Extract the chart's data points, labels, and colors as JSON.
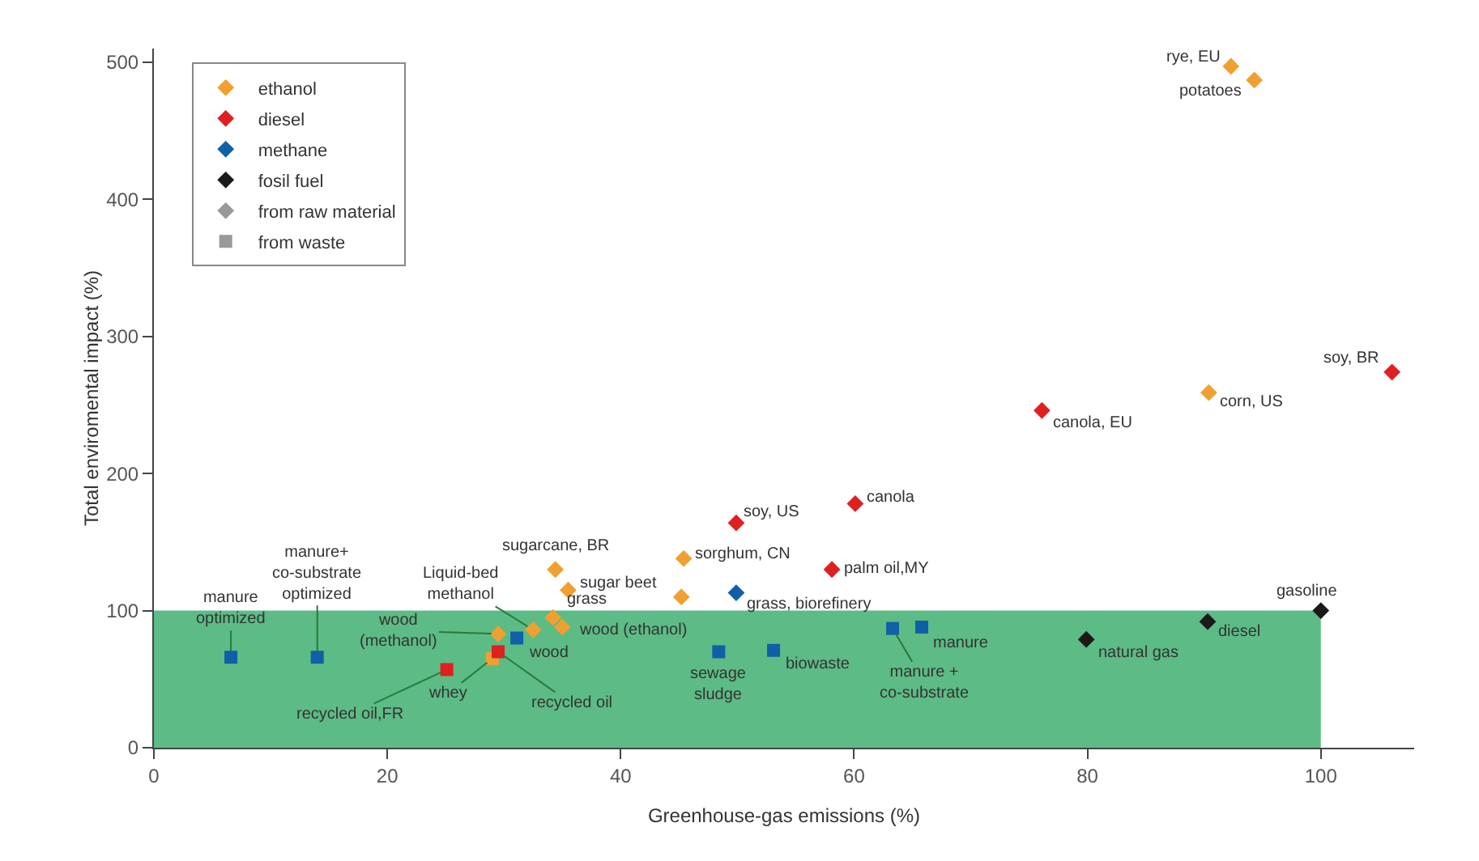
{
  "chart_data": {
    "type": "scatter",
    "xlabel": "Greenhouse-gas emissions (%)",
    "ylabel": "Total enviromental impact (%)",
    "xlim": [
      0,
      108
    ],
    "xticks": [
      0,
      20,
      40,
      60,
      80,
      100
    ],
    "ylim": [
      0,
      510
    ],
    "yticks": [
      0,
      100,
      200,
      300,
      400,
      500
    ],
    "grid": false,
    "legend": "top left",
    "bands": [
      {
        "axis": "y",
        "from": 0,
        "to": 100,
        "color": "#5dbb85"
      }
    ],
    "series": [
      {
        "name": "ethanol",
        "color": "#f0a030",
        "marker": "diamond",
        "x": [
          92.3,
          94.3,
          90.4,
          34.4,
          45.4,
          45.2,
          35.5,
          34.2,
          35,
          29.5,
          32.5
        ],
        "values": [
          497,
          487,
          259,
          130,
          138,
          110,
          115,
          95,
          88,
          83,
          86
        ],
        "value_labels": [
          "rye, EU",
          "potatoes",
          "corn, US",
          "sugarcane, BR",
          "sorghum, CN",
          null,
          "sugar beet",
          "grass",
          "wood (ethanol)",
          "wood\n(methanol)",
          "Liquid-bed\nmethanol"
        ]
      },
      {
        "color": "#f0a030",
        "marker": "square",
        "x": [
          29
        ],
        "values": [
          65
        ],
        "value_labels": [
          "whey"
        ]
      },
      {
        "name": "diesel",
        "color": "#e02020",
        "marker": "diamond",
        "x": [
          106.1,
          76.1,
          60.1,
          49.9,
          58.1
        ],
        "values": [
          274,
          246,
          178,
          164,
          130
        ],
        "value_labels": [
          "soy, BR",
          "canola, EU",
          "canola",
          "soy, US",
          "palm oil,MY"
        ]
      },
      {
        "color": "#e02020",
        "marker": "square",
        "x": [
          25.1,
          29.5
        ],
        "values": [
          57,
          70
        ],
        "value_labels": [
          "recycled oil,FR",
          "recycled oil"
        ]
      },
      {
        "name": "methane",
        "color": "#1060a8",
        "marker": "diamond",
        "x": [
          49.9
        ],
        "values": [
          113
        ],
        "value_labels": [
          "grass, biorefinery"
        ]
      },
      {
        "color": "#1060a8",
        "marker": "square",
        "x": [
          6.6,
          14,
          31.1,
          48.4,
          53.1,
          63.3,
          65.8
        ],
        "values": [
          66,
          66,
          80,
          70,
          71,
          87,
          88
        ],
        "value_labels": [
          "manure\noptimized",
          "manure+\nco-substrate\noptimized",
          "wood",
          "sewage\nsludge",
          "biowaste",
          "manure +\nco-substrate",
          "manure"
        ]
      },
      {
        "name": "fosil fuel",
        "color": "#1a1a1a",
        "marker": "diamond",
        "x": [
          100,
          90.3,
          79.9
        ],
        "values": [
          100,
          92,
          79
        ],
        "value_labels": [
          "gasoline",
          "diesel",
          "natural gas"
        ]
      },
      {
        "name": "from raw material",
        "color": "#999999",
        "marker": "diamond"
      },
      {
        "name": "from waste",
        "color": "#999999",
        "marker": "square"
      }
    ]
  }
}
